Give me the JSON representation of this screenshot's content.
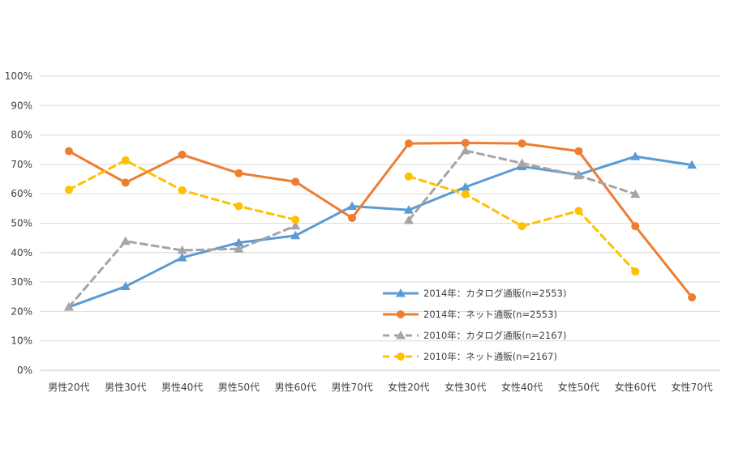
{
  "chart_data": {
    "type": "line",
    "title": "",
    "xlabel": "",
    "ylabel": "",
    "ylim": [
      0,
      100
    ],
    "yticks": [
      "0%",
      "10%",
      "20%",
      "30%",
      "40%",
      "50%",
      "60%",
      "70%",
      "80%",
      "90%",
      "100%"
    ],
    "grid": true,
    "legend_position": "lower-right",
    "categories": [
      "男性20代",
      "男性30代",
      "男性40代",
      "男性50代",
      "男性60代",
      "男性70代",
      "女性20代",
      "女性30代",
      "女性40代",
      "女性50代",
      "女性60代",
      "女性70代"
    ],
    "series": [
      {
        "name": "2014年：カタログ通販(n=2553)",
        "color": "#5b9bd5",
        "marker": "triangle",
        "dashed": false,
        "values": [
          21.5,
          28.5,
          38.3,
          43.4,
          45.8,
          55.8,
          54.5,
          62.3,
          69.3,
          66.5,
          72.7,
          69.8
        ]
      },
      {
        "name": "2014年：ネット通販(n=2553)",
        "color": "#ed7d31",
        "marker": "circle",
        "dashed": false,
        "values": [
          74.5,
          63.8,
          73.3,
          67.0,
          64.1,
          51.8,
          77.1,
          77.3,
          77.1,
          74.5,
          49.0,
          24.8
        ]
      },
      {
        "name": "2010年：カタログ通販(n=2167)",
        "color": "#a5a5a5",
        "marker": "triangle",
        "dashed": true,
        "values": [
          21.5,
          43.9,
          40.8,
          41.3,
          49.1,
          null,
          51.0,
          74.7,
          70.4,
          66.2,
          59.9,
          null
        ]
      },
      {
        "name": "2010年：ネット通販(n=2167)",
        "color": "#ffc000",
        "marker": "circle",
        "dashed": true,
        "values": [
          61.4,
          71.4,
          61.2,
          55.8,
          51.2,
          null,
          65.9,
          59.9,
          49.0,
          54.2,
          33.6,
          null
        ]
      }
    ]
  }
}
